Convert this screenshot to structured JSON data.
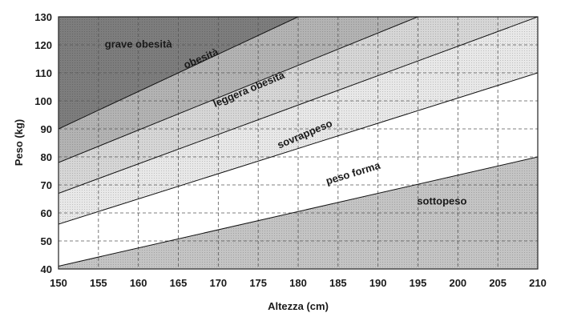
{
  "chart_data": {
    "type": "area",
    "title": "",
    "xlabel": "Altezza (cm)",
    "ylabel": "Peso (kg)",
    "xlim": [
      150,
      210
    ],
    "ylim": [
      40,
      130
    ],
    "x_ticks": [
      150,
      155,
      160,
      165,
      170,
      175,
      180,
      185,
      190,
      195,
      200,
      205,
      210
    ],
    "y_ticks": [
      40,
      50,
      60,
      70,
      80,
      90,
      100,
      110,
      120,
      130
    ],
    "grid": "dashed",
    "boundaries": [
      {
        "x": [
          150,
          210
        ],
        "y": [
          41,
          80
        ]
      },
      {
        "x": [
          150,
          210
        ],
        "y": [
          56,
          110
        ]
      },
      {
        "x": [
          150,
          210
        ],
        "y": [
          67,
          130
        ]
      },
      {
        "x": [
          150,
          195
        ],
        "y": [
          78,
          130
        ]
      },
      {
        "x": [
          150,
          180
        ],
        "y": [
          90,
          130
        ]
      }
    ],
    "bands": [
      {
        "label": "sottopeso",
        "color": "#c4c4c4",
        "label_at": [
          198,
          63
        ],
        "angle": 0
      },
      {
        "label": "peso forma",
        "color": "#ffffff",
        "label_at": [
          187,
          73
        ],
        "angle": -17
      },
      {
        "label": "sovrappeso",
        "color": "#e8e8e8",
        "label_at": [
          181,
          87
        ],
        "angle": -23
      },
      {
        "label": "leggera obesità",
        "color": "#d6d6d6",
        "label_at": [
          174,
          103
        ],
        "angle": -23
      },
      {
        "label": "obesità",
        "color": "#b3b3b3",
        "label_at": [
          168,
          114
        ],
        "angle": -23
      },
      {
        "label": "grave obesità",
        "color": "#7d7d7d",
        "label_at": [
          160,
          119
        ],
        "angle": 0
      }
    ]
  }
}
